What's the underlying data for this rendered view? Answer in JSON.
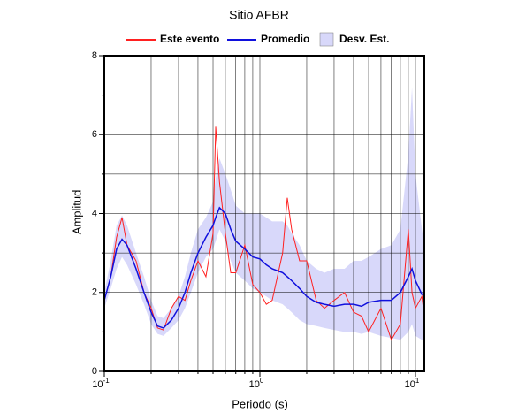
{
  "chart_data": {
    "type": "line",
    "title": "Sitio AFBR",
    "x_label": "Periodo (s)",
    "y_label": "Amplitud",
    "log_x": true,
    "xlim": [
      0.1,
      11.4
    ],
    "ylim": [
      0,
      8
    ],
    "xticks": [
      {
        "value": 0.1,
        "label": "10",
        "exponent": "-1"
      },
      {
        "value": 1,
        "label": "10",
        "exponent": "0"
      },
      {
        "value": 10,
        "label": "10",
        "exponent": "1"
      }
    ],
    "xgrid": [
      0.2,
      0.3,
      0.4,
      0.5,
      0.6,
      0.7,
      0.8,
      0.9,
      2,
      3,
      4,
      5,
      6,
      7,
      8,
      9
    ],
    "yticks": [
      0,
      2,
      4,
      6,
      8
    ],
    "yminorticks": [
      1,
      3,
      5,
      7
    ],
    "x": [
      0.1,
      0.11,
      0.12,
      0.13,
      0.14,
      0.16,
      0.18,
      0.2,
      0.22,
      0.24,
      0.27,
      0.3,
      0.33,
      0.36,
      0.4,
      0.45,
      0.5,
      0.52,
      0.55,
      0.6,
      0.65,
      0.7,
      0.8,
      0.9,
      1.0,
      1.1,
      1.2,
      1.4,
      1.5,
      1.6,
      1.8,
      2.0,
      2.3,
      2.6,
      3.0,
      3.5,
      4,
      4.5,
      5,
      6,
      7,
      8,
      9,
      9.5,
      10,
      11,
      11.4
    ],
    "series": [
      {
        "name": "Este evento",
        "color": "#ff2020",
        "values": [
          1.8,
          2.4,
          3.4,
          3.9,
          3.2,
          2.8,
          2.0,
          1.6,
          1.1,
          1.05,
          1.6,
          1.9,
          1.8,
          2.3,
          2.8,
          2.4,
          3.5,
          6.2,
          4.8,
          3.5,
          2.5,
          2.5,
          3.2,
          2.2,
          2.0,
          1.7,
          1.8,
          3.0,
          4.4,
          3.6,
          2.8,
          2.8,
          1.8,
          1.6,
          1.8,
          2.0,
          1.5,
          1.4,
          1.0,
          1.6,
          0.8,
          1.2,
          3.6,
          2.0,
          1.6,
          1.9,
          1.4
        ]
      },
      {
        "name": "Promedio",
        "color": "#1010dd",
        "values": [
          1.8,
          2.4,
          3.1,
          3.35,
          3.2,
          2.6,
          2.0,
          1.5,
          1.15,
          1.1,
          1.3,
          1.6,
          2.0,
          2.5,
          3.0,
          3.4,
          3.7,
          3.9,
          4.15,
          4.0,
          3.6,
          3.3,
          3.1,
          2.9,
          2.85,
          2.7,
          2.6,
          2.5,
          2.4,
          2.3,
          2.1,
          1.9,
          1.75,
          1.7,
          1.65,
          1.7,
          1.7,
          1.65,
          1.75,
          1.8,
          1.8,
          2.0,
          2.4,
          2.6,
          2.3,
          1.95,
          1.95
        ]
      }
    ],
    "band": {
      "name": "Desv. Est.",
      "color": "#d8d8fa",
      "lower": [
        1.6,
        2.1,
        2.6,
        2.9,
        2.7,
        2.2,
        1.7,
        1.2,
        0.95,
        0.9,
        1.1,
        1.3,
        1.6,
        2.0,
        2.5,
        2.9,
        3.1,
        3.3,
        3.6,
        3.3,
        2.8,
        2.5,
        2.3,
        2.1,
        2.0,
        1.9,
        1.8,
        1.7,
        1.6,
        1.5,
        1.3,
        1.2,
        1.15,
        1.1,
        1.05,
        1.0,
        1.0,
        0.95,
        1.0,
        0.9,
        0.85,
        0.8,
        1.0,
        1.2,
        0.9,
        0.8,
        0.8
      ],
      "upper": [
        2.0,
        2.8,
        3.7,
        3.95,
        3.7,
        3.0,
        2.4,
        1.8,
        1.4,
        1.35,
        1.6,
        1.9,
        2.4,
        3.0,
        3.6,
        3.9,
        4.3,
        4.9,
        5.4,
        5.0,
        4.6,
        4.2,
        4.0,
        4.0,
        4.0,
        3.9,
        3.8,
        3.8,
        3.7,
        3.5,
        3.2,
        2.8,
        2.6,
        2.5,
        2.6,
        2.6,
        2.8,
        2.8,
        2.9,
        3.1,
        3.2,
        3.6,
        5.5,
        7.2,
        5.0,
        3.6,
        3.2
      ]
    }
  }
}
